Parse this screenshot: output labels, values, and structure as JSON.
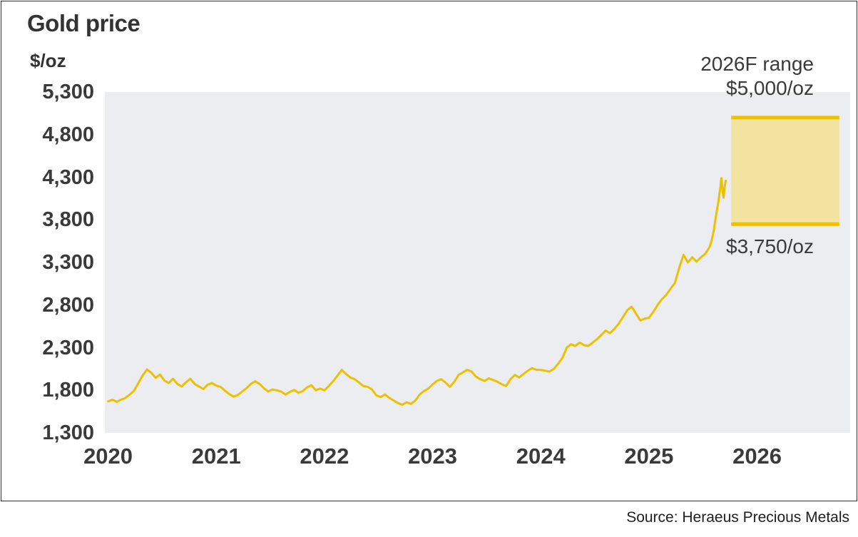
{
  "source": "Source: Heraeus Precious Metals",
  "colors": {
    "line": "#EDC000",
    "band_fill": "#F2E3A1",
    "band_border": "#EDC000",
    "plot_bg": "#ECEDF1",
    "text": "#3A3A3A"
  },
  "chart_data": {
    "type": "line",
    "title": "Gold price",
    "ylabel": "$/oz",
    "xlabel": "",
    "grid": false,
    "legend": false,
    "xlim": [
      2019.97,
      2026.86
    ],
    "ylim": [
      1300,
      5300
    ],
    "x_ticks": [
      "2020",
      "2021",
      "2022",
      "2023",
      "2024",
      "2025",
      "2026"
    ],
    "x_tick_values": [
      2020,
      2021,
      2022,
      2023,
      2024,
      2025,
      2026
    ],
    "y_ticks": [
      "5,300",
      "4,800",
      "4,300",
      "3,800",
      "3,300",
      "2,800",
      "2,300",
      "1,800",
      "1,300"
    ],
    "y_tick_values": [
      5300,
      4800,
      4300,
      3800,
      3300,
      2800,
      2300,
      1800,
      1300
    ],
    "series": [
      {
        "name": "Gold price ($/oz)",
        "color": "#EDC000",
        "points": [
          [
            2020.0,
            1670
          ],
          [
            2020.04,
            1690
          ],
          [
            2020.08,
            1665
          ],
          [
            2020.12,
            1690
          ],
          [
            2020.16,
            1710
          ],
          [
            2020.2,
            1750
          ],
          [
            2020.24,
            1795
          ],
          [
            2020.28,
            1885
          ],
          [
            2020.32,
            1975
          ],
          [
            2020.36,
            2045
          ],
          [
            2020.4,
            2005
          ],
          [
            2020.44,
            1945
          ],
          [
            2020.48,
            1985
          ],
          [
            2020.52,
            1915
          ],
          [
            2020.56,
            1885
          ],
          [
            2020.6,
            1935
          ],
          [
            2020.64,
            1875
          ],
          [
            2020.68,
            1845
          ],
          [
            2020.72,
            1895
          ],
          [
            2020.76,
            1935
          ],
          [
            2020.8,
            1875
          ],
          [
            2020.84,
            1845
          ],
          [
            2020.88,
            1815
          ],
          [
            2020.92,
            1865
          ],
          [
            2020.96,
            1885
          ],
          [
            2021.0,
            1855
          ],
          [
            2021.04,
            1840
          ],
          [
            2021.08,
            1795
          ],
          [
            2021.12,
            1755
          ],
          [
            2021.16,
            1725
          ],
          [
            2021.2,
            1745
          ],
          [
            2021.24,
            1785
          ],
          [
            2021.28,
            1825
          ],
          [
            2021.32,
            1875
          ],
          [
            2021.36,
            1905
          ],
          [
            2021.4,
            1875
          ],
          [
            2021.44,
            1825
          ],
          [
            2021.48,
            1785
          ],
          [
            2021.52,
            1810
          ],
          [
            2021.56,
            1800
          ],
          [
            2021.6,
            1785
          ],
          [
            2021.64,
            1750
          ],
          [
            2021.68,
            1780
          ],
          [
            2021.72,
            1805
          ],
          [
            2021.76,
            1770
          ],
          [
            2021.8,
            1790
          ],
          [
            2021.84,
            1835
          ],
          [
            2021.88,
            1860
          ],
          [
            2021.92,
            1800
          ],
          [
            2021.96,
            1820
          ],
          [
            2022.0,
            1800
          ],
          [
            2022.04,
            1850
          ],
          [
            2022.08,
            1905
          ],
          [
            2022.12,
            1970
          ],
          [
            2022.16,
            2040
          ],
          [
            2022.2,
            1990
          ],
          [
            2022.24,
            1950
          ],
          [
            2022.28,
            1930
          ],
          [
            2022.32,
            1890
          ],
          [
            2022.36,
            1850
          ],
          [
            2022.4,
            1840
          ],
          [
            2022.44,
            1810
          ],
          [
            2022.48,
            1740
          ],
          [
            2022.52,
            1720
          ],
          [
            2022.56,
            1750
          ],
          [
            2022.6,
            1710
          ],
          [
            2022.64,
            1680
          ],
          [
            2022.68,
            1650
          ],
          [
            2022.72,
            1630
          ],
          [
            2022.76,
            1660
          ],
          [
            2022.8,
            1640
          ],
          [
            2022.84,
            1680
          ],
          [
            2022.88,
            1750
          ],
          [
            2022.92,
            1790
          ],
          [
            2022.96,
            1820
          ],
          [
            2023.0,
            1870
          ],
          [
            2023.04,
            1910
          ],
          [
            2023.08,
            1930
          ],
          [
            2023.12,
            1890
          ],
          [
            2023.16,
            1840
          ],
          [
            2023.2,
            1900
          ],
          [
            2023.24,
            1980
          ],
          [
            2023.28,
            2010
          ],
          [
            2023.32,
            2040
          ],
          [
            2023.36,
            2020
          ],
          [
            2023.4,
            1960
          ],
          [
            2023.44,
            1930
          ],
          [
            2023.48,
            1910
          ],
          [
            2023.52,
            1940
          ],
          [
            2023.56,
            1920
          ],
          [
            2023.6,
            1900
          ],
          [
            2023.64,
            1870
          ],
          [
            2023.68,
            1850
          ],
          [
            2023.72,
            1930
          ],
          [
            2023.76,
            1980
          ],
          [
            2023.8,
            1950
          ],
          [
            2023.84,
            1990
          ],
          [
            2023.88,
            2030
          ],
          [
            2023.92,
            2060
          ],
          [
            2023.96,
            2040
          ],
          [
            2024.0,
            2040
          ],
          [
            2024.04,
            2030
          ],
          [
            2024.08,
            2020
          ],
          [
            2024.12,
            2050
          ],
          [
            2024.16,
            2110
          ],
          [
            2024.2,
            2180
          ],
          [
            2024.24,
            2300
          ],
          [
            2024.28,
            2340
          ],
          [
            2024.32,
            2320
          ],
          [
            2024.36,
            2360
          ],
          [
            2024.4,
            2330
          ],
          [
            2024.44,
            2320
          ],
          [
            2024.48,
            2360
          ],
          [
            2024.52,
            2400
          ],
          [
            2024.56,
            2450
          ],
          [
            2024.6,
            2500
          ],
          [
            2024.64,
            2470
          ],
          [
            2024.68,
            2520
          ],
          [
            2024.72,
            2580
          ],
          [
            2024.76,
            2660
          ],
          [
            2024.8,
            2740
          ],
          [
            2024.84,
            2780
          ],
          [
            2024.88,
            2700
          ],
          [
            2024.92,
            2620
          ],
          [
            2024.96,
            2640
          ],
          [
            2025.0,
            2650
          ],
          [
            2025.04,
            2720
          ],
          [
            2025.08,
            2800
          ],
          [
            2025.12,
            2870
          ],
          [
            2025.16,
            2920
          ],
          [
            2025.2,
            2990
          ],
          [
            2025.24,
            3060
          ],
          [
            2025.28,
            3240
          ],
          [
            2025.32,
            3390
          ],
          [
            2025.36,
            3300
          ],
          [
            2025.4,
            3360
          ],
          [
            2025.44,
            3310
          ],
          [
            2025.48,
            3360
          ],
          [
            2025.52,
            3400
          ],
          [
            2025.56,
            3480
          ],
          [
            2025.58,
            3560
          ],
          [
            2025.6,
            3680
          ],
          [
            2025.62,
            3850
          ],
          [
            2025.64,
            4000
          ],
          [
            2025.66,
            4180
          ],
          [
            2025.67,
            4290
          ],
          [
            2025.68,
            4150
          ],
          [
            2025.69,
            4060
          ],
          [
            2025.7,
            4190
          ],
          [
            2025.71,
            4260
          ]
        ]
      }
    ],
    "forecast_band": {
      "label": "2026F range",
      "x_start": 2025.76,
      "x_end": 2026.76,
      "low": 3750,
      "high": 5000,
      "low_label": "$3,750/oz",
      "high_label": "$5,000/oz"
    }
  }
}
